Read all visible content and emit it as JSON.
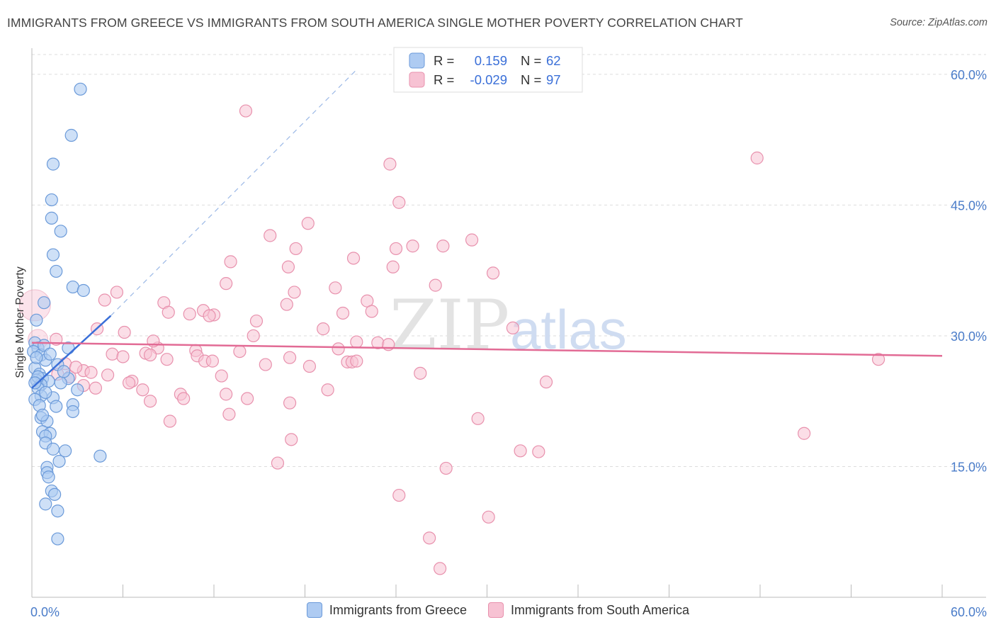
{
  "title": "IMMIGRANTS FROM GREECE VS IMMIGRANTS FROM SOUTH AMERICA SINGLE MOTHER POVERTY CORRELATION CHART",
  "source": "Source: ZipAtlas.com",
  "watermark": {
    "zip": "ZIP",
    "atlas": "atlas"
  },
  "colors": {
    "greece_fill": "#aecbf2",
    "greece_stroke": "#6b9ad9",
    "greece_line": "#3a6fd8",
    "sa_fill": "#f7c2d3",
    "sa_stroke": "#e891ad",
    "sa_line": "#e26b95",
    "axis_text": "#4a7cc9",
    "grid": "#dddddd"
  },
  "legend_top": {
    "rows": [
      {
        "r_label": "R =",
        "r_value": "0.159",
        "n_label": "N =",
        "n_value": "62"
      },
      {
        "r_label": "R =",
        "r_value": "-0.029",
        "n_label": "N =",
        "n_value": "97"
      }
    ]
  },
  "chart_data": {
    "type": "scatter",
    "title": "IMMIGRANTS FROM GREECE VS IMMIGRANTS FROM SOUTH AMERICA SINGLE MOTHER POVERTY CORRELATION CHART",
    "xlabel": "",
    "ylabel": "Single Mother Poverty",
    "xlim": [
      0,
      60
    ],
    "ylim": [
      0,
      63
    ],
    "x_tick_labels": [
      "0.0%",
      "60.0%"
    ],
    "y_ticks": [
      15,
      30,
      45,
      60
    ],
    "y_tick_labels": [
      "15.0%",
      "30.0%",
      "45.0%",
      "60.0%"
    ],
    "legend": [
      "Immigrants from Greece",
      "Immigrants from South America"
    ],
    "series": [
      {
        "name": "Immigrants from Greece",
        "r": 0.159,
        "n": 62,
        "trend": {
          "x0": 0.0,
          "y0": 24.0,
          "x1": 5.2,
          "y1": 32.3,
          "dash_to_x": 21.5,
          "dash_to_y": 60.7
        },
        "points": [
          [
            3.2,
            58.3
          ],
          [
            2.6,
            53.0
          ],
          [
            1.4,
            49.7
          ],
          [
            1.3,
            45.6
          ],
          [
            1.3,
            43.5
          ],
          [
            1.9,
            42.0
          ],
          [
            1.4,
            39.3
          ],
          [
            1.6,
            37.4
          ],
          [
            2.7,
            35.6
          ],
          [
            3.4,
            35.2
          ],
          [
            0.8,
            33.8
          ],
          [
            0.3,
            31.8
          ],
          [
            0.2,
            29.2
          ],
          [
            0.4,
            28.6
          ],
          [
            0.1,
            28.2
          ],
          [
            0.6,
            27.8
          ],
          [
            2.4,
            28.6
          ],
          [
            0.9,
            27.2
          ],
          [
            1.7,
            26.7
          ],
          [
            0.2,
            26.3
          ],
          [
            0.5,
            25.6
          ],
          [
            0.7,
            25.1
          ],
          [
            0.3,
            24.9
          ],
          [
            1.1,
            24.8
          ],
          [
            0.6,
            24.4
          ],
          [
            2.4,
            25.1
          ],
          [
            1.9,
            24.6
          ],
          [
            0.4,
            24.0
          ],
          [
            3.0,
            23.8
          ],
          [
            0.6,
            23.1
          ],
          [
            0.2,
            22.7
          ],
          [
            1.4,
            22.9
          ],
          [
            2.7,
            22.1
          ],
          [
            0.5,
            22.0
          ],
          [
            2.7,
            21.3
          ],
          [
            0.6,
            20.6
          ],
          [
            1.0,
            20.2
          ],
          [
            0.7,
            19.0
          ],
          [
            1.2,
            18.8
          ],
          [
            0.9,
            18.5
          ],
          [
            0.9,
            17.7
          ],
          [
            1.4,
            17.0
          ],
          [
            2.2,
            16.8
          ],
          [
            4.5,
            16.2
          ],
          [
            1.8,
            15.6
          ],
          [
            1.0,
            14.9
          ],
          [
            1.0,
            14.3
          ],
          [
            1.1,
            13.8
          ],
          [
            1.3,
            12.2
          ],
          [
            1.5,
            11.8
          ],
          [
            0.9,
            10.7
          ],
          [
            1.7,
            9.9
          ],
          [
            1.7,
            6.7
          ],
          [
            0.3,
            27.5
          ],
          [
            0.8,
            28.9
          ],
          [
            1.2,
            27.9
          ],
          [
            0.4,
            25.3
          ],
          [
            0.9,
            23.5
          ],
          [
            1.6,
            21.9
          ],
          [
            0.2,
            24.6
          ],
          [
            2.1,
            25.9
          ],
          [
            0.7,
            20.9
          ]
        ]
      },
      {
        "name": "Immigrants from South America",
        "r": -0.029,
        "n": 97,
        "trend": {
          "x0": 0.0,
          "y0": 29.2,
          "x1": 60.0,
          "y1": 27.7
        },
        "points": [
          [
            14.1,
            55.8
          ],
          [
            47.8,
            50.4
          ],
          [
            23.6,
            49.7
          ],
          [
            24.2,
            45.3
          ],
          [
            18.2,
            42.9
          ],
          [
            15.7,
            41.5
          ],
          [
            27.1,
            40.3
          ],
          [
            17.4,
            40.0
          ],
          [
            25.1,
            40.3
          ],
          [
            21.2,
            38.9
          ],
          [
            13.1,
            38.5
          ],
          [
            16.9,
            37.9
          ],
          [
            30.4,
            37.2
          ],
          [
            23.8,
            37.9
          ],
          [
            12.8,
            36.0
          ],
          [
            26.6,
            35.8
          ],
          [
            17.3,
            35.0
          ],
          [
            20.0,
            35.5
          ],
          [
            4.8,
            34.1
          ],
          [
            8.7,
            33.8
          ],
          [
            22.1,
            34.0
          ],
          [
            16.8,
            33.6
          ],
          [
            9.0,
            32.7
          ],
          [
            11.3,
            32.9
          ],
          [
            10.4,
            32.5
          ],
          [
            12.0,
            32.4
          ],
          [
            20.5,
            32.6
          ],
          [
            11.7,
            32.3
          ],
          [
            14.8,
            31.7
          ],
          [
            22.4,
            32.8
          ],
          [
            4.3,
            30.8
          ],
          [
            6.1,
            30.4
          ],
          [
            19.2,
            30.8
          ],
          [
            31.7,
            30.9
          ],
          [
            14.6,
            30.0
          ],
          [
            1.6,
            29.6
          ],
          [
            21.4,
            29.3
          ],
          [
            22.8,
            29.2
          ],
          [
            23.5,
            29.0
          ],
          [
            20.2,
            28.5
          ],
          [
            8.3,
            28.6
          ],
          [
            10.8,
            28.3
          ],
          [
            13.7,
            28.2
          ],
          [
            7.5,
            28.0
          ],
          [
            7.8,
            27.8
          ],
          [
            10.9,
            27.7
          ],
          [
            5.3,
            27.9
          ],
          [
            6.0,
            27.6
          ],
          [
            17.0,
            27.5
          ],
          [
            8.9,
            27.3
          ],
          [
            11.4,
            27.1
          ],
          [
            11.9,
            27.1
          ],
          [
            20.8,
            27.0
          ],
          [
            21.1,
            27.0
          ],
          [
            21.4,
            27.1
          ],
          [
            2.2,
            26.8
          ],
          [
            15.4,
            26.7
          ],
          [
            18.3,
            26.5
          ],
          [
            3.4,
            26.0
          ],
          [
            3.9,
            25.8
          ],
          [
            1.7,
            25.6
          ],
          [
            5.0,
            25.5
          ],
          [
            12.5,
            25.4
          ],
          [
            25.6,
            25.7
          ],
          [
            2.5,
            25.3
          ],
          [
            6.6,
            24.8
          ],
          [
            6.4,
            24.6
          ],
          [
            33.9,
            24.7
          ],
          [
            3.4,
            24.3
          ],
          [
            4.2,
            24.0
          ],
          [
            7.3,
            23.8
          ],
          [
            9.8,
            23.3
          ],
          [
            12.8,
            23.3
          ],
          [
            10.0,
            22.8
          ],
          [
            14.2,
            22.8
          ],
          [
            17.0,
            22.3
          ],
          [
            7.8,
            22.5
          ],
          [
            13.0,
            21.0
          ],
          [
            29.4,
            20.5
          ],
          [
            9.1,
            20.2
          ],
          [
            17.1,
            18.1
          ],
          [
            50.9,
            18.8
          ],
          [
            32.2,
            16.8
          ],
          [
            33.4,
            16.7
          ],
          [
            16.2,
            15.4
          ],
          [
            27.3,
            14.8
          ],
          [
            24.2,
            11.7
          ],
          [
            30.1,
            9.2
          ],
          [
            26.2,
            6.8
          ],
          [
            26.9,
            3.3
          ],
          [
            55.8,
            27.3
          ],
          [
            5.6,
            35.0
          ],
          [
            24.0,
            40.0
          ],
          [
            29.0,
            41.0
          ],
          [
            2.9,
            26.4
          ],
          [
            8.0,
            29.4
          ],
          [
            19.5,
            23.8
          ]
        ]
      }
    ]
  }
}
